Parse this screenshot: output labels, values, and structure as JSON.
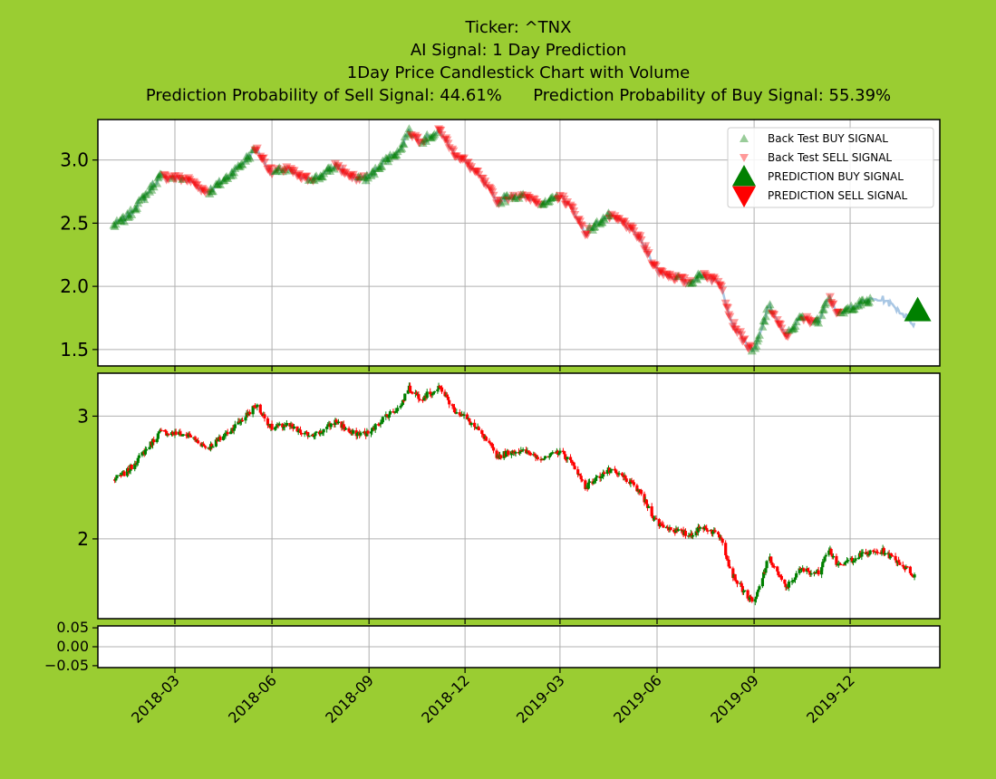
{
  "title_lines": [
    "Ticker: ^TNX",
    "AI Signal: 1 Day Prediction",
    "1Day Price Candlestick Chart with Volume",
    "Prediction Probability of Sell Signal: 44.61%      Prediction Probability of Buy Signal: 55.39%"
  ],
  "colors": {
    "background": "#9acd32",
    "buy": "#008000",
    "sell": "#ff0000",
    "price_line": "#a9c7e4",
    "grid": "#b0b0b0"
  },
  "legend": {
    "placement": "top-right",
    "items": [
      {
        "label": "Back Test BUY SIGNAL",
        "marker": "triangle-up",
        "color": "#008000",
        "alpha": 0.4
      },
      {
        "label": "Back Test SELL SIGNAL",
        "marker": "triangle-down",
        "color": "#ff0000",
        "alpha": 0.4
      },
      {
        "label": "PREDICTION BUY SIGNAL",
        "marker": "triangle-up",
        "color": "#008000",
        "alpha": 1
      },
      {
        "label": "PREDICTION SELL SIGNAL",
        "marker": "triangle-down",
        "color": "#ff0000",
        "alpha": 1
      }
    ]
  },
  "chart_data": [
    {
      "type": "scatter",
      "panel": "signals",
      "grid": true,
      "ylim": [
        1.37,
        3.32
      ],
      "yticks": [
        1.5,
        2.0,
        2.5,
        3.0
      ],
      "ytick_labels": [
        "1.5",
        "2.0",
        "2.5",
        "3.0"
      ],
      "xlim": [
        "2017-12-18",
        "2020-02-24"
      ],
      "xticks": [
        "2018-03-01",
        "2018-06-01",
        "2018-09-01",
        "2018-12-01",
        "2019-03-01",
        "2019-06-01",
        "2019-09-01",
        "2019-12-01"
      ],
      "xtick_labels": [
        "2018-03",
        "2018-06",
        "2018-09",
        "2018-12",
        "2019-03",
        "2019-06",
        "2019-09",
        "2019-12"
      ],
      "price_series": {
        "dates": [
          "2018-01-02",
          "2018-01-15",
          "2018-02-01",
          "2018-02-15",
          "2018-03-01",
          "2018-03-15",
          "2018-04-01",
          "2018-04-15",
          "2018-05-01",
          "2018-05-17",
          "2018-06-01",
          "2018-06-15",
          "2018-07-01",
          "2018-07-15",
          "2018-08-01",
          "2018-08-15",
          "2018-09-01",
          "2018-09-15",
          "2018-10-01",
          "2018-10-08",
          "2018-10-20",
          "2018-11-08",
          "2018-11-20",
          "2018-12-01",
          "2018-12-15",
          "2019-01-01",
          "2019-01-15",
          "2019-02-01",
          "2019-02-15",
          "2019-03-01",
          "2019-03-15",
          "2019-03-25",
          "2019-04-15",
          "2019-05-01",
          "2019-05-15",
          "2019-06-01",
          "2019-06-15",
          "2019-07-01",
          "2019-07-15",
          "2019-08-01",
          "2019-08-10",
          "2019-08-25",
          "2019-09-01",
          "2019-09-15",
          "2019-10-01",
          "2019-10-15",
          "2019-11-01",
          "2019-11-10",
          "2019-11-20",
          "2019-12-01",
          "2019-12-15",
          "2020-01-01",
          "2020-01-15",
          "2020-01-31"
        ],
        "values": [
          2.48,
          2.55,
          2.72,
          2.87,
          2.86,
          2.84,
          2.74,
          2.83,
          2.95,
          3.09,
          2.9,
          2.93,
          2.85,
          2.86,
          2.96,
          2.86,
          2.86,
          2.99,
          3.08,
          3.23,
          3.15,
          3.23,
          3.06,
          2.99,
          2.87,
          2.67,
          2.72,
          2.7,
          2.65,
          2.72,
          2.59,
          2.42,
          2.56,
          2.5,
          2.39,
          2.13,
          2.08,
          2.03,
          2.1,
          2.02,
          1.73,
          1.54,
          1.47,
          1.85,
          1.6,
          1.75,
          1.72,
          1.94,
          1.77,
          1.83,
          1.88,
          1.9,
          1.82,
          1.7
        ]
      },
      "prediction": {
        "date": "2020-02-03",
        "value": 1.81,
        "signal": "BUY"
      }
    },
    {
      "type": "candlestick",
      "panel": "price",
      "grid": true,
      "ylim": [
        1.35,
        3.35
      ],
      "yticks": [
        2,
        3
      ],
      "ytick_labels": [
        "2",
        "3"
      ],
      "up_color": "#008000",
      "down_color": "#ff0000"
    },
    {
      "type": "bar",
      "panel": "volume",
      "grid": true,
      "ylim": [
        -0.055,
        0.055
      ],
      "yticks": [
        0.05,
        0.0,
        -0.05
      ],
      "ytick_labels": [
        "0.05",
        "0.00",
        "−0.05"
      ],
      "values": []
    }
  ]
}
